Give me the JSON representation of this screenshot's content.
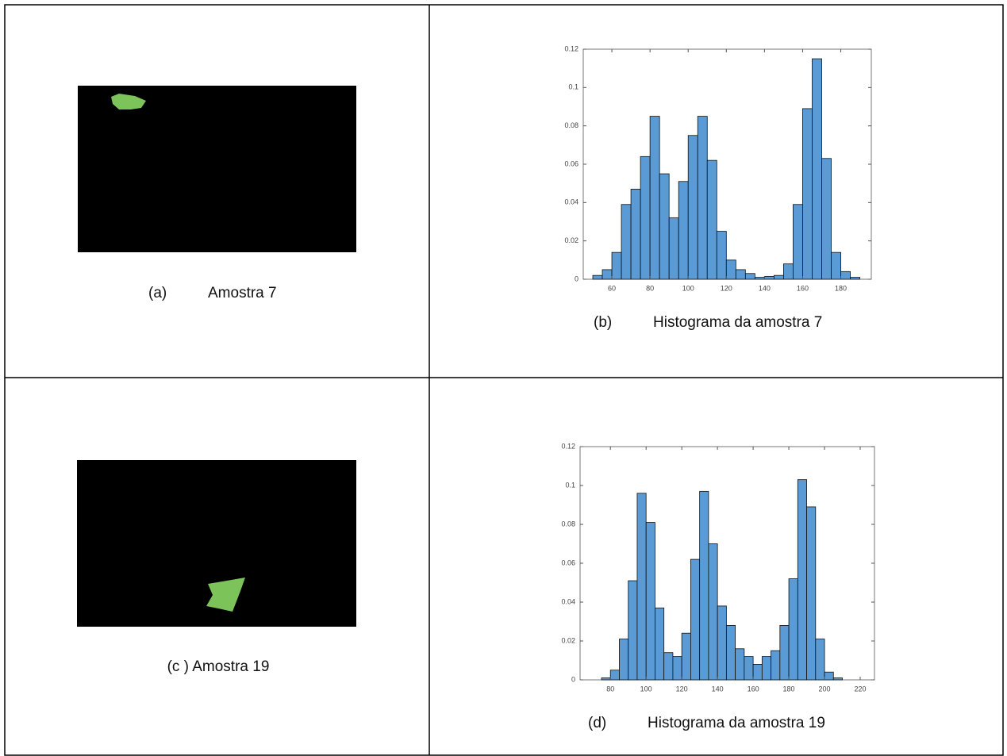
{
  "captions": {
    "a": {
      "label": "(a)",
      "text": "Amostra 7"
    },
    "b": {
      "label": "(b)",
      "text": "Histograma da amostra 7"
    },
    "c": "(c ) Amostra 19",
    "d": {
      "label": "(d)",
      "text": "Histograma da amostra 19"
    }
  },
  "chart_data": [
    {
      "type": "histogram",
      "color": "#5b9bd5",
      "bins": [
        50,
        55,
        60,
        65,
        70,
        75,
        80,
        85,
        90,
        95,
        100,
        105,
        110,
        115,
        120,
        125,
        130,
        135,
        140,
        145,
        150,
        155,
        160,
        165,
        170,
        175,
        180,
        185,
        190
      ],
      "values": [
        0.002,
        0.005,
        0.014,
        0.039,
        0.047,
        0.064,
        0.085,
        0.055,
        0.032,
        0.051,
        0.075,
        0.085,
        0.062,
        0.025,
        0.01,
        0.005,
        0.003,
        0.001,
        0.0015,
        0.002,
        0.008,
        0.039,
        0.089,
        0.115,
        0.063,
        0.014,
        0.004,
        0.001
      ],
      "xlim": [
        45,
        196
      ],
      "xticks": [
        60,
        80,
        100,
        120,
        140,
        160,
        180
      ],
      "ylim": [
        0,
        0.12
      ],
      "yticks": [
        0,
        0.02,
        0.04,
        0.06,
        0.08,
        0.1,
        0.12
      ]
    },
    {
      "type": "histogram",
      "color": "#5b9bd5",
      "bins": [
        75,
        80,
        85,
        90,
        95,
        100,
        105,
        110,
        115,
        120,
        125,
        130,
        135,
        140,
        145,
        150,
        155,
        160,
        165,
        170,
        175,
        180,
        185,
        190,
        195,
        200,
        205,
        210
      ],
      "values": [
        0.001,
        0.005,
        0.021,
        0.051,
        0.096,
        0.081,
        0.037,
        0.014,
        0.012,
        0.024,
        0.062,
        0.097,
        0.07,
        0.038,
        0.028,
        0.016,
        0.012,
        0.008,
        0.012,
        0.015,
        0.028,
        0.052,
        0.103,
        0.089,
        0.021,
        0.004,
        0.001
      ],
      "xlim": [
        63,
        228
      ],
      "xticks": [
        80,
        100,
        120,
        140,
        160,
        180,
        200,
        220
      ],
      "ylim": [
        0,
        0.12
      ],
      "yticks": [
        0,
        0.02,
        0.04,
        0.06,
        0.08,
        0.1,
        0.12
      ]
    }
  ]
}
